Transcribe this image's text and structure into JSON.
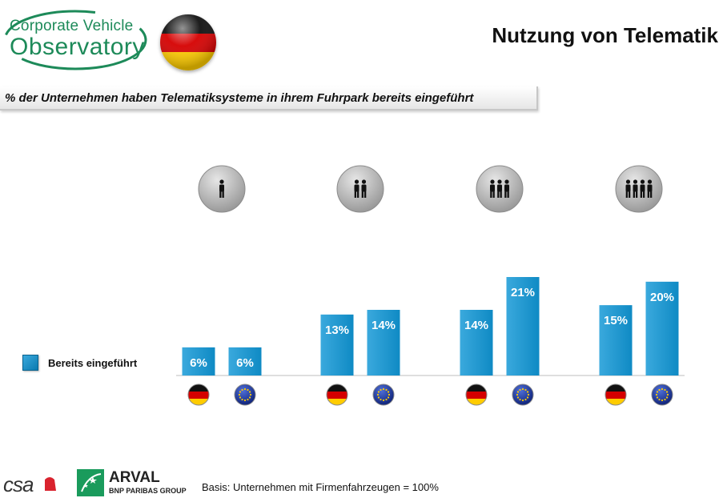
{
  "header": {
    "logo_line1": "Corporate Vehicle",
    "logo_line2": "Observatory",
    "title": "Nutzung von Telematik"
  },
  "subtitle": "% der Unternehmen haben Telematiksysteme in ihrem Fuhrpark bereits eingeführt",
  "legend": {
    "label": "Bereits eingeführt"
  },
  "colors": {
    "bar": "#0f8ac4",
    "bar_light": "#3aa9dd",
    "logo_green": "#1d8a59"
  },
  "chart_data": {
    "type": "bar",
    "categories": [
      "1",
      "2",
      "3",
      "4"
    ],
    "category_icons": [
      "person-1-icon",
      "persons-2-icon",
      "persons-3-icon",
      "persons-4-icon"
    ],
    "bar_markers": [
      "flag-germany-icon",
      "flag-eu-icon"
    ],
    "series": [
      {
        "name": "Bereits eingeführt",
        "values": [
          6,
          13,
          14,
          15
        ],
        "marker": "flag-germany-icon"
      },
      {
        "name": "Bereits eingeführt",
        "values": [
          6,
          14,
          21,
          20
        ],
        "marker": "flag-eu-icon"
      }
    ],
    "value_suffix": "%",
    "ylim": [
      0,
      24
    ],
    "grid": false,
    "legend_position": "left"
  },
  "footer": {
    "csa": "csa",
    "arval_name": "ARVAL",
    "arval_sub": "BNP PARIBAS GROUP",
    "basis": "Basis: Unternehmen mit Firmenfahrzeugen = 100%"
  }
}
